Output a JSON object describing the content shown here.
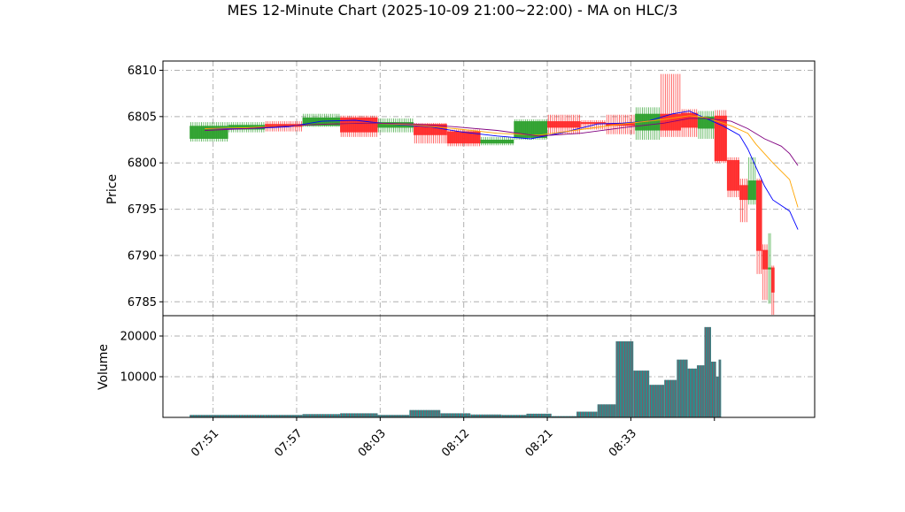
{
  "chart_data": {
    "type": "candlestick",
    "title": "MES 12-Minute Chart (2025-10-09 21:00~22:00) - MA on HLC/3",
    "price_panel": {
      "ylabel": "Price",
      "ylim": [
        6783.5,
        6811
      ],
      "yticks": [
        6785,
        6790,
        6795,
        6800,
        6805,
        6810
      ],
      "grid": true
    },
    "volume_panel": {
      "ylabel": "Volume",
      "ylim": [
        0,
        25000
      ],
      "yticks": [
        10000,
        20000
      ],
      "grid": true
    },
    "xlim": [
      7.75,
      8.53
    ],
    "x_ticks": [
      {
        "t": 7.85,
        "label": "07:51"
      },
      {
        "t": 7.95,
        "label": "07:57"
      },
      {
        "t": 8.05,
        "label": "08:03"
      },
      {
        "t": 8.2,
        "label": "08:12"
      },
      {
        "t": 8.35,
        "label": "08:21"
      },
      {
        "t": 8.55,
        "label": "08:33"
      }
    ],
    "x_tick_label_positions": [
      7.81,
      7.91,
      8.01,
      8.11,
      8.21,
      8.31
    ],
    "last_tick": 8.41,
    "candles": [
      {
        "x0": 7.782,
        "x1": 7.828,
        "open": 6802.6,
        "close": 6804.0,
        "high": 6804.4,
        "low": 6802.3
      },
      {
        "x0": 7.828,
        "x1": 7.872,
        "open": 6803.6,
        "close": 6804.1,
        "high": 6804.4,
        "low": 6803.3
      },
      {
        "x0": 7.872,
        "x1": 7.917,
        "open": 6804.2,
        "close": 6803.9,
        "high": 6804.5,
        "low": 6803.4
      },
      {
        "x0": 7.917,
        "x1": 7.962,
        "open": 6804.0,
        "close": 6804.9,
        "high": 6805.3,
        "low": 6803.9
      },
      {
        "x0": 7.962,
        "x1": 8.007,
        "open": 6804.9,
        "close": 6803.3,
        "high": 6805.1,
        "low": 6802.8
      },
      {
        "x0": 8.007,
        "x1": 8.05,
        "open": 6803.8,
        "close": 6804.4,
        "high": 6804.8,
        "low": 6803.3
      },
      {
        "x0": 8.05,
        "x1": 8.09,
        "open": 6804.2,
        "close": 6803.0,
        "high": 6804.3,
        "low": 6802.1
      },
      {
        "x0": 8.09,
        "x1": 8.13,
        "open": 6803.4,
        "close": 6802.1,
        "high": 6803.6,
        "low": 6801.8
      },
      {
        "x0": 8.13,
        "x1": 8.17,
        "open": 6802.1,
        "close": 6802.5,
        "high": 6802.8,
        "low": 6801.9
      },
      {
        "x0": 8.17,
        "x1": 8.21,
        "open": 6802.7,
        "close": 6804.5,
        "high": 6804.7,
        "low": 6802.5
      },
      {
        "x0": 8.21,
        "x1": 8.25,
        "open": 6804.5,
        "close": 6803.8,
        "high": 6805.2,
        "low": 6803.1
      },
      {
        "x0": 8.25,
        "x1": 8.28,
        "open": 6804.4,
        "close": 6804.2,
        "high": 6804.6,
        "low": 6803.6
      },
      {
        "x0": 8.28,
        "x1": 8.315,
        "open": 6804.3,
        "close": 6804.0,
        "high": 6805.2,
        "low": 6803.1
      },
      {
        "x0": 8.315,
        "x1": 8.345,
        "open": 6803.5,
        "close": 6805.3,
        "high": 6806.0,
        "low": 6802.5
      },
      {
        "x0": 8.345,
        "x1": 8.37,
        "open": 6805.3,
        "close": 6803.5,
        "high": 6809.6,
        "low": 6802.8
      },
      {
        "x0": 8.37,
        "x1": 8.39,
        "open": 6805.4,
        "close": 6803.8,
        "high": 6805.8,
        "low": 6802.8
      },
      {
        "x0": 8.39,
        "x1": 8.41,
        "open": 6803.7,
        "close": 6805.0,
        "high": 6805.6,
        "low": 6802.6
      },
      {
        "x0": 8.41,
        "x1": 8.425,
        "open": 6805.1,
        "close": 6800.2,
        "high": 6805.7,
        "low": 6800.0
      },
      {
        "x0": 8.425,
        "x1": 8.44,
        "open": 6800.3,
        "close": 6797.0,
        "high": 6800.6,
        "low": 6796.3
      },
      {
        "x0": 8.44,
        "x1": 8.45,
        "open": 6797.6,
        "close": 6796.0,
        "high": 6798.3,
        "low": 6793.6
      },
      {
        "x0": 8.45,
        "x1": 8.46,
        "open": 6796.0,
        "close": 6798.1,
        "high": 6800.6,
        "low": 6795.5
      },
      {
        "x0": 8.46,
        "x1": 8.467,
        "open": 6798.1,
        "close": 6790.5,
        "high": 6798.3,
        "low": 6788.0
      },
      {
        "x0": 8.467,
        "x1": 8.474,
        "open": 6790.6,
        "close": 6788.5,
        "high": 6791.2,
        "low": 6785.2
      },
      {
        "x0": 8.474,
        "x1": 8.478,
        "open": 6788.5,
        "close": 6788.7,
        "high": 6792.4,
        "low": 6784.8
      },
      {
        "x0": 8.478,
        "x1": 8.482,
        "open": 6788.7,
        "close": 6786.0,
        "high": 6788.9,
        "low": 6783.6
      }
    ],
    "volume_bars": [
      {
        "x0": 7.782,
        "x1": 7.872,
        "v": 600
      },
      {
        "x0": 7.872,
        "x1": 7.917,
        "v": 600
      },
      {
        "x0": 7.917,
        "x1": 7.962,
        "v": 800
      },
      {
        "x0": 7.962,
        "x1": 8.007,
        "v": 1000
      },
      {
        "x0": 8.007,
        "x1": 8.045,
        "v": 600
      },
      {
        "x0": 8.045,
        "x1": 8.082,
        "v": 1800
      },
      {
        "x0": 8.082,
        "x1": 8.118,
        "v": 1000
      },
      {
        "x0": 8.118,
        "x1": 8.155,
        "v": 700
      },
      {
        "x0": 8.155,
        "x1": 8.185,
        "v": 600
      },
      {
        "x0": 8.185,
        "x1": 8.215,
        "v": 900
      },
      {
        "x0": 8.215,
        "x1": 8.245,
        "v": 300
      },
      {
        "x0": 8.245,
        "x1": 8.27,
        "v": 1400
      },
      {
        "x0": 8.27,
        "x1": 8.292,
        "v": 3200
      },
      {
        "x0": 8.292,
        "x1": 8.313,
        "v": 18700
      },
      {
        "x0": 8.313,
        "x1": 8.332,
        "v": 11500
      },
      {
        "x0": 8.332,
        "x1": 8.35,
        "v": 8000
      },
      {
        "x0": 8.35,
        "x1": 8.365,
        "v": 9200
      },
      {
        "x0": 8.365,
        "x1": 8.378,
        "v": 14200
      },
      {
        "x0": 8.378,
        "x1": 8.389,
        "v": 12000
      },
      {
        "x0": 8.389,
        "x1": 8.398,
        "v": 12800
      },
      {
        "x0": 8.398,
        "x1": 8.406,
        "v": 22200
      },
      {
        "x0": 8.406,
        "x1": 8.412,
        "v": 13700
      },
      {
        "x0": 8.412,
        "x1": 8.415,
        "v": 10000
      },
      {
        "x0": 8.415,
        "x1": 8.418,
        "v": 14200
      }
    ],
    "ma_series": [
      {
        "color": "#0000ff",
        "points": [
          [
            7.8,
            6803.7
          ],
          [
            7.85,
            6803.7
          ],
          [
            7.9,
            6803.9
          ],
          [
            7.94,
            6804.5
          ],
          [
            7.98,
            6804.6
          ],
          [
            8.02,
            6804.2
          ],
          [
            8.07,
            6803.9
          ],
          [
            8.11,
            6803.3
          ],
          [
            8.15,
            6802.9
          ],
          [
            8.19,
            6802.6
          ],
          [
            8.23,
            6803.3
          ],
          [
            8.27,
            6804.2
          ],
          [
            8.3,
            6804.3
          ],
          [
            8.33,
            6804.5
          ],
          [
            8.36,
            6805.3
          ],
          [
            8.38,
            6805.6
          ],
          [
            8.4,
            6804.8
          ],
          [
            8.42,
            6804.0
          ],
          [
            8.44,
            6803.0
          ],
          [
            8.45,
            6801.5
          ],
          [
            8.46,
            6799.5
          ],
          [
            8.47,
            6797.5
          ],
          [
            8.48,
            6796.0
          ],
          [
            8.5,
            6794.8
          ],
          [
            8.51,
            6792.8
          ]
        ]
      },
      {
        "color": "#ffa500",
        "points": [
          [
            7.8,
            6803.7
          ],
          [
            7.85,
            6803.8
          ],
          [
            7.9,
            6804.0
          ],
          [
            7.95,
            6804.2
          ],
          [
            8.0,
            6804.3
          ],
          [
            8.05,
            6804.1
          ],
          [
            8.1,
            6803.7
          ],
          [
            8.15,
            6803.2
          ],
          [
            8.2,
            6803.0
          ],
          [
            8.25,
            6803.6
          ],
          [
            8.3,
            6804.2
          ],
          [
            8.35,
            6804.7
          ],
          [
            8.38,
            6805.1
          ],
          [
            8.4,
            6804.9
          ],
          [
            8.43,
            6804.0
          ],
          [
            8.45,
            6803.2
          ],
          [
            8.46,
            6802.0
          ],
          [
            8.48,
            6800.0
          ],
          [
            8.5,
            6798.2
          ],
          [
            8.51,
            6795.2
          ]
        ]
      },
      {
        "color": "#800080",
        "points": [
          [
            7.8,
            6803.5
          ],
          [
            7.85,
            6803.7
          ],
          [
            7.9,
            6804.0
          ],
          [
            7.95,
            6804.2
          ],
          [
            8.0,
            6804.3
          ],
          [
            8.05,
            6804.2
          ],
          [
            8.1,
            6803.9
          ],
          [
            8.15,
            6803.5
          ],
          [
            8.2,
            6802.9
          ],
          [
            8.25,
            6803.2
          ],
          [
            8.3,
            6803.8
          ],
          [
            8.35,
            6804.3
          ],
          [
            8.38,
            6804.8
          ],
          [
            8.4,
            6804.8
          ],
          [
            8.43,
            6804.5
          ],
          [
            8.45,
            6803.7
          ],
          [
            8.47,
            6802.6
          ],
          [
            8.49,
            6801.8
          ],
          [
            8.5,
            6801.0
          ],
          [
            8.51,
            6799.7
          ]
        ]
      }
    ]
  },
  "colors": {
    "up": "#2ca02c",
    "down": "#ff2a2a",
    "volume_fill": "#2e8b8b",
    "volume_edge": "#c0304a",
    "grid": "#b0b0b0"
  }
}
